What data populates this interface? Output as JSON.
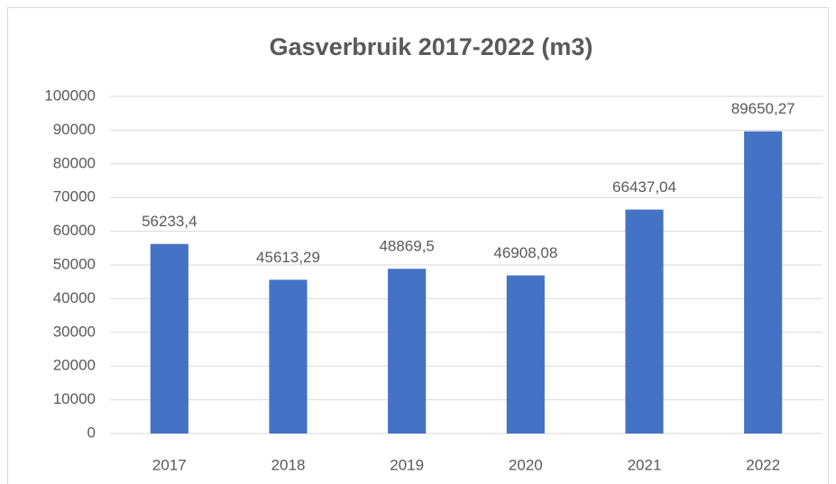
{
  "chart_data": {
    "type": "bar",
    "title": "Gasverbruik 2017-2022 (m3)",
    "categories": [
      "2017",
      "2018",
      "2019",
      "2020",
      "2021",
      "2022"
    ],
    "values": [
      56233.4,
      45613.29,
      48869.5,
      46908.08,
      66437.04,
      89650.27
    ],
    "value_labels": [
      "56233,4",
      "45613,29",
      "48869,5",
      "46908,08",
      "66437,04",
      "89650,27"
    ],
    "color": "#4472c4",
    "ylim": [
      0,
      100000
    ],
    "yticks": [
      0,
      10000,
      20000,
      30000,
      40000,
      50000,
      60000,
      70000,
      80000,
      90000,
      100000
    ],
    "grid": true
  }
}
